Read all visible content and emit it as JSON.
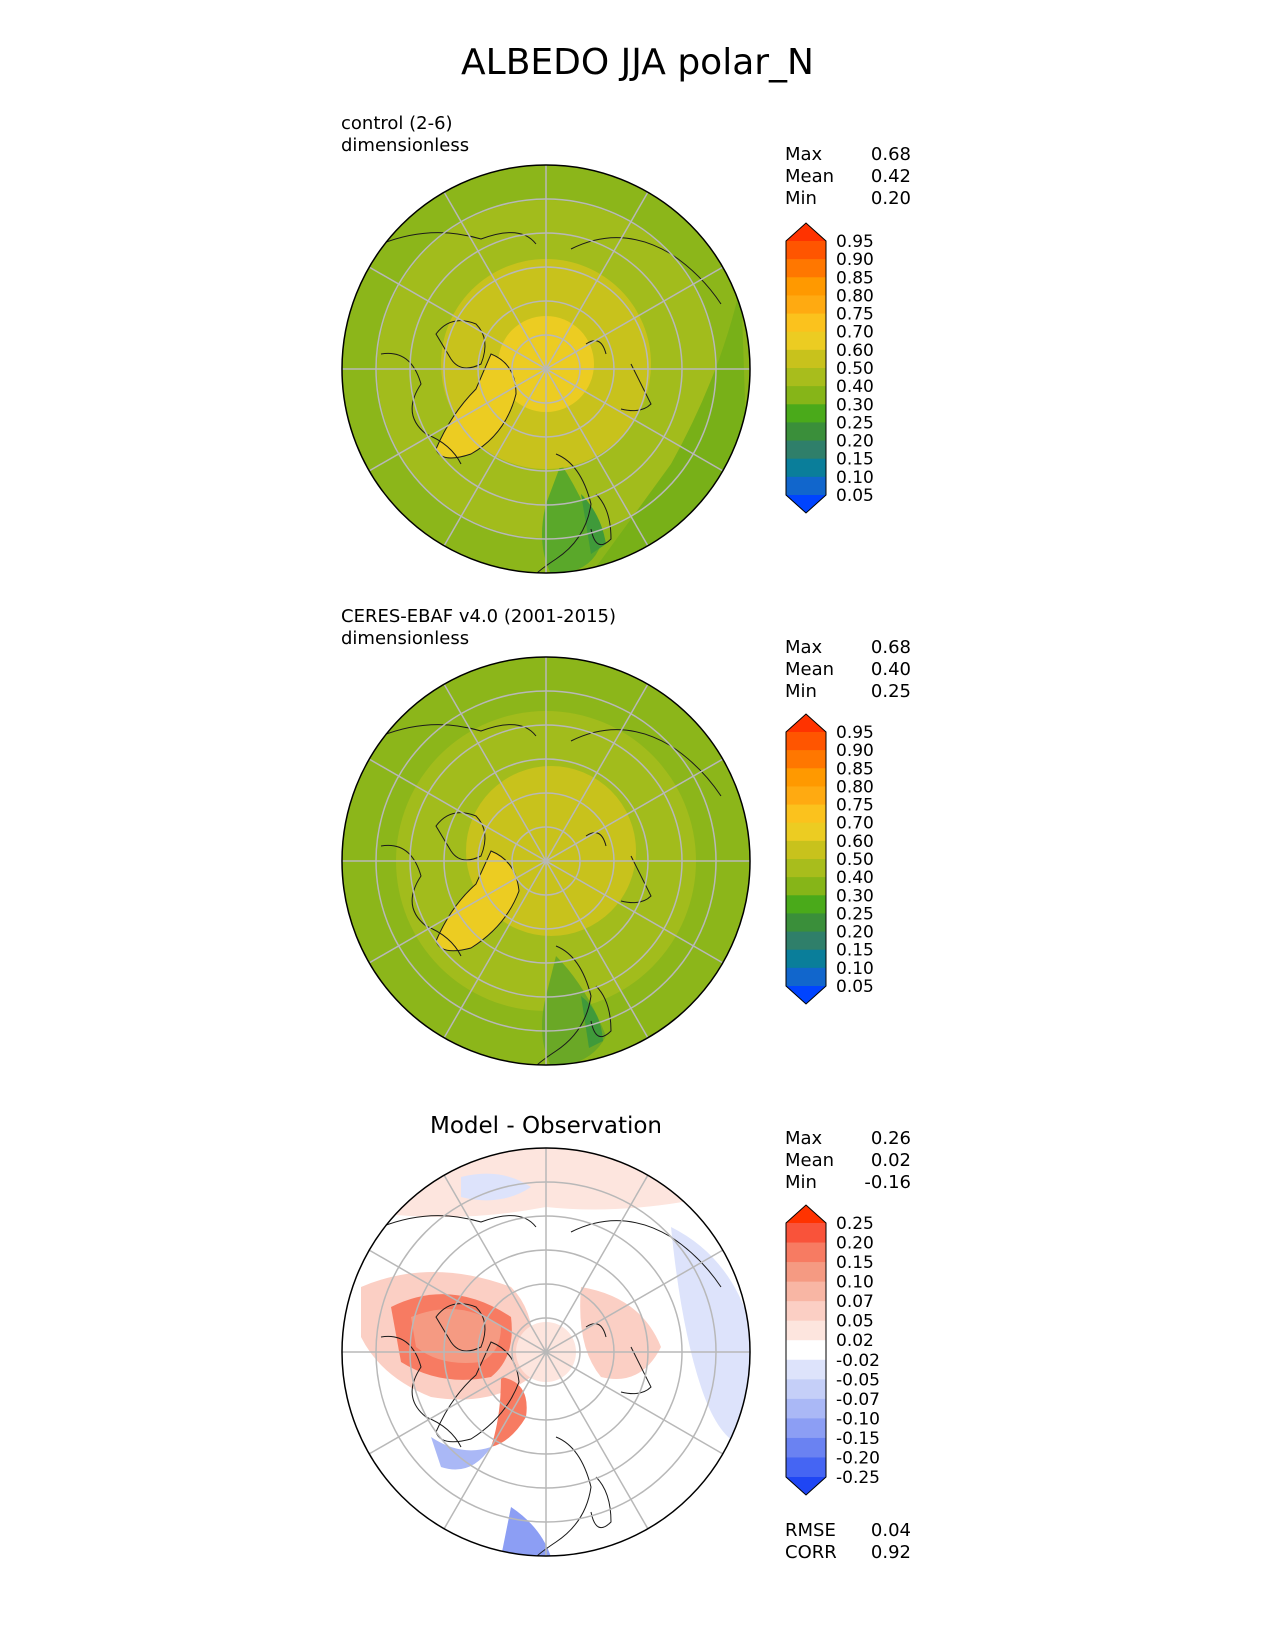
{
  "title": "ALBEDO JJA polar_N",
  "panels": [
    {
      "label": "control (2-6)",
      "units": "dimensionless",
      "stats": [
        {
          "name": "Max",
          "value": "0.68"
        },
        {
          "name": "Mean",
          "value": "0.42"
        },
        {
          "name": "Min",
          "value": "0.20"
        }
      ]
    },
    {
      "label": "CERES-EBAF v4.0 (2001-2015)",
      "units": "dimensionless",
      "stats": [
        {
          "name": "Max",
          "value": "0.68"
        },
        {
          "name": "Mean",
          "value": "0.40"
        },
        {
          "name": "Min",
          "value": "0.25"
        }
      ]
    },
    {
      "label": "Model - Observation",
      "stats": [
        {
          "name": "Max",
          "value": "0.26"
        },
        {
          "name": "Mean",
          "value": "0.02"
        },
        {
          "name": "Min",
          "value": "-0.16"
        }
      ],
      "metrics": [
        {
          "name": "RMSE",
          "value": "0.04"
        },
        {
          "name": "CORR",
          "value": "0.92"
        }
      ]
    }
  ],
  "colorbars": {
    "albedo": {
      "ticks": [
        "0.95",
        "0.90",
        "0.85",
        "0.80",
        "0.75",
        "0.70",
        "0.60",
        "0.50",
        "0.40",
        "0.30",
        "0.25",
        "0.20",
        "0.15",
        "0.10",
        "0.05"
      ],
      "colors": [
        "#ff3300",
        "#ff5500",
        "#ff7700",
        "#ff9900",
        "#ffaa11",
        "#fbc21d",
        "#eccc22",
        "#c8c21c",
        "#a8bd1c",
        "#86b518",
        "#4aaa1a",
        "#3a8f3a",
        "#2f7f6a",
        "#0a7e9a",
        "#1166cc",
        "#0044ff"
      ]
    },
    "difference": {
      "ticks": [
        "0.25",
        "0.20",
        "0.15",
        "0.10",
        "0.07",
        "0.05",
        "0.02",
        "-0.02",
        "-0.05",
        "-0.07",
        "-0.10",
        "-0.15",
        "-0.20",
        "-0.25"
      ],
      "colors": [
        "#ff3300",
        "#f9533a",
        "#f77b62",
        "#f59a82",
        "#f8b6a4",
        "#fbcfc4",
        "#fde5de",
        "#ffffff",
        "#dde3fb",
        "#c5cff8",
        "#aab8f6",
        "#8c9ef4",
        "#6a82f2",
        "#4565f3",
        "#1f46f4"
      ]
    }
  },
  "chart_data": [
    {
      "type": "heatmap",
      "title": "control (2-6)",
      "units": "dimensionless",
      "projection": "north polar stereographic",
      "colorbar_ticks": [
        0.05,
        0.1,
        0.15,
        0.2,
        0.25,
        0.3,
        0.4,
        0.5,
        0.6,
        0.7,
        0.75,
        0.8,
        0.85,
        0.9,
        0.95
      ],
      "stats": {
        "max": 0.68,
        "mean": 0.42,
        "min": 0.2
      }
    },
    {
      "type": "heatmap",
      "title": "CERES-EBAF v4.0 (2001-2015)",
      "units": "dimensionless",
      "projection": "north polar stereographic",
      "colorbar_ticks": [
        0.05,
        0.1,
        0.15,
        0.2,
        0.25,
        0.3,
        0.4,
        0.5,
        0.6,
        0.7,
        0.75,
        0.8,
        0.85,
        0.9,
        0.95
      ],
      "stats": {
        "max": 0.68,
        "mean": 0.4,
        "min": 0.25
      }
    },
    {
      "type": "heatmap",
      "title": "Model - Observation",
      "projection": "north polar stereographic",
      "colorbar_ticks": [
        -0.25,
        -0.2,
        -0.15,
        -0.1,
        -0.07,
        -0.05,
        -0.02,
        0.02,
        0.05,
        0.07,
        0.1,
        0.15,
        0.2,
        0.25
      ],
      "stats": {
        "max": 0.26,
        "mean": 0.02,
        "min": -0.16,
        "rmse": 0.04,
        "corr": 0.92
      }
    }
  ]
}
